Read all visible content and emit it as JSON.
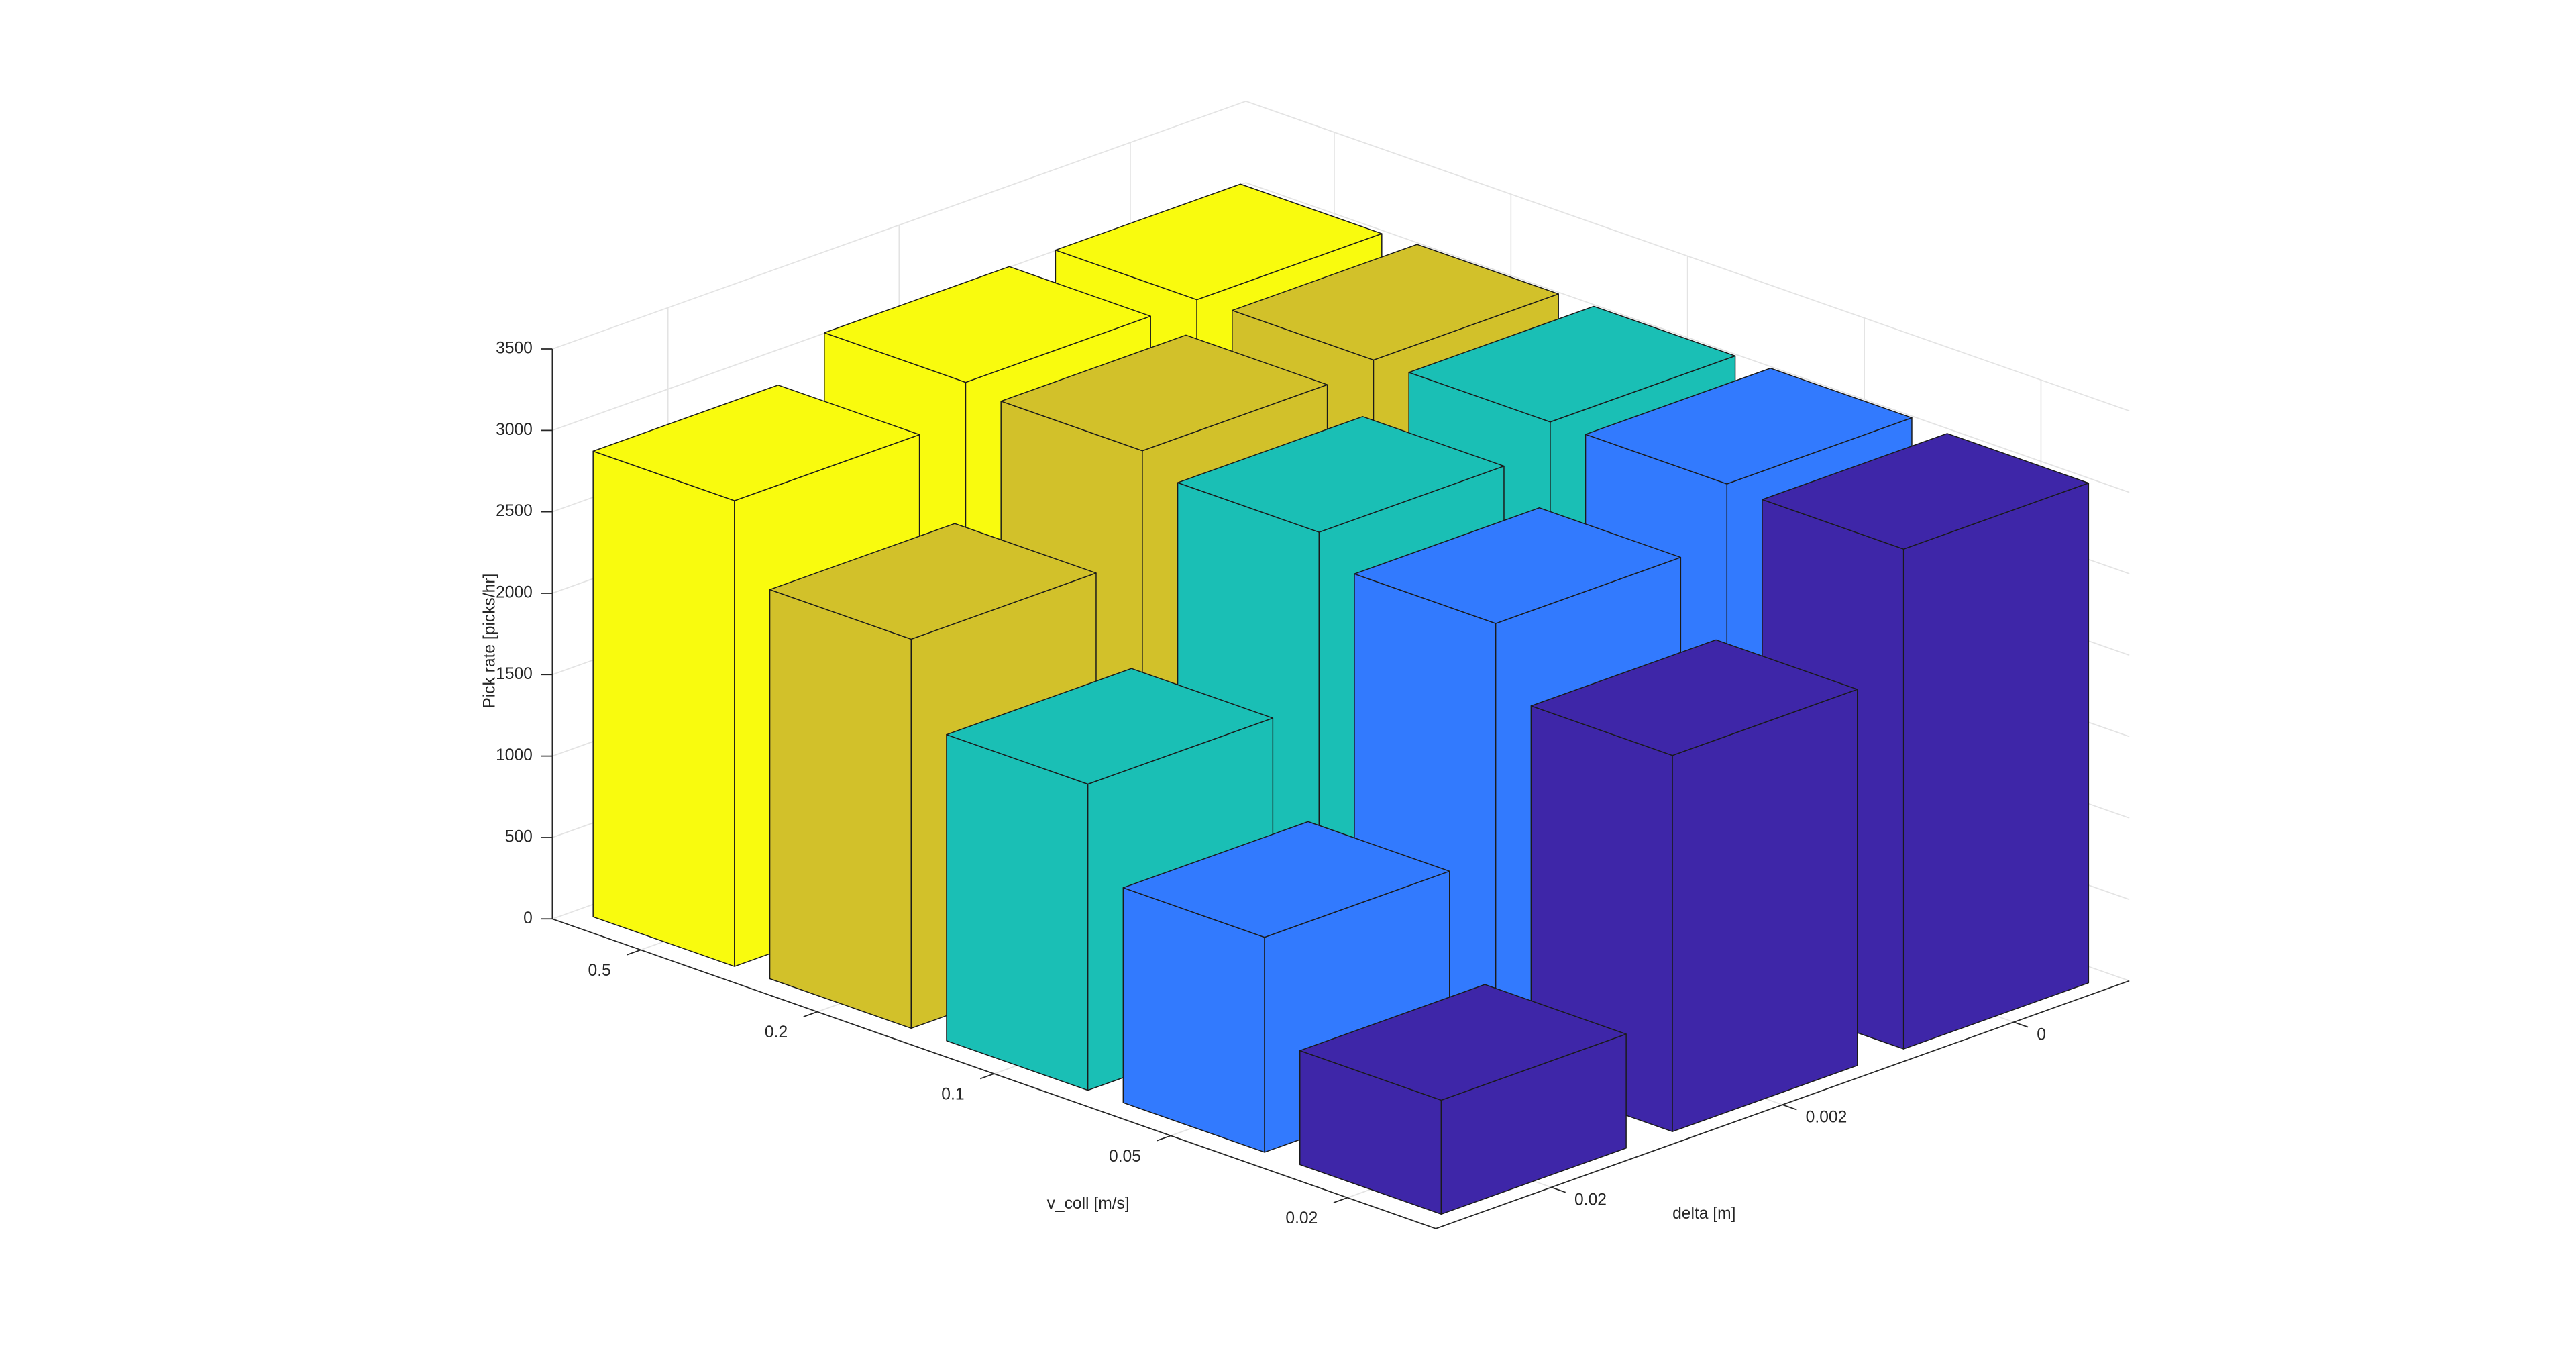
{
  "chart_data": {
    "type": "bar3",
    "xlabel": "v_coll [m/s]",
    "ylabel": "delta [m]",
    "zlabel": "Pick rate [picks/hr]",
    "categories": [
      "0.02",
      "0.002",
      "0"
    ],
    "series": [
      {
        "name": "0.5",
        "color": "#f9fb0e",
        "values": [
          2860,
          3080,
          3080
        ]
      },
      {
        "name": "0.2",
        "color": "#d2c12a",
        "values": [
          2390,
          3040,
          3090
        ]
      },
      {
        "name": "0.1",
        "color": "#1abfb5",
        "values": [
          1880,
          2920,
          3090
        ]
      },
      {
        "name": "0.05",
        "color": "#327afe",
        "values": [
          1320,
          2740,
          3090
        ]
      },
      {
        "name": "0.02",
        "color": "#3e26a8",
        "values": [
          700,
          2310,
          3070
        ]
      }
    ],
    "zlim": [
      0,
      3500
    ],
    "zticks": [
      0,
      500,
      1000,
      1500,
      2000,
      2500,
      3000,
      3500
    ],
    "grid": true
  }
}
